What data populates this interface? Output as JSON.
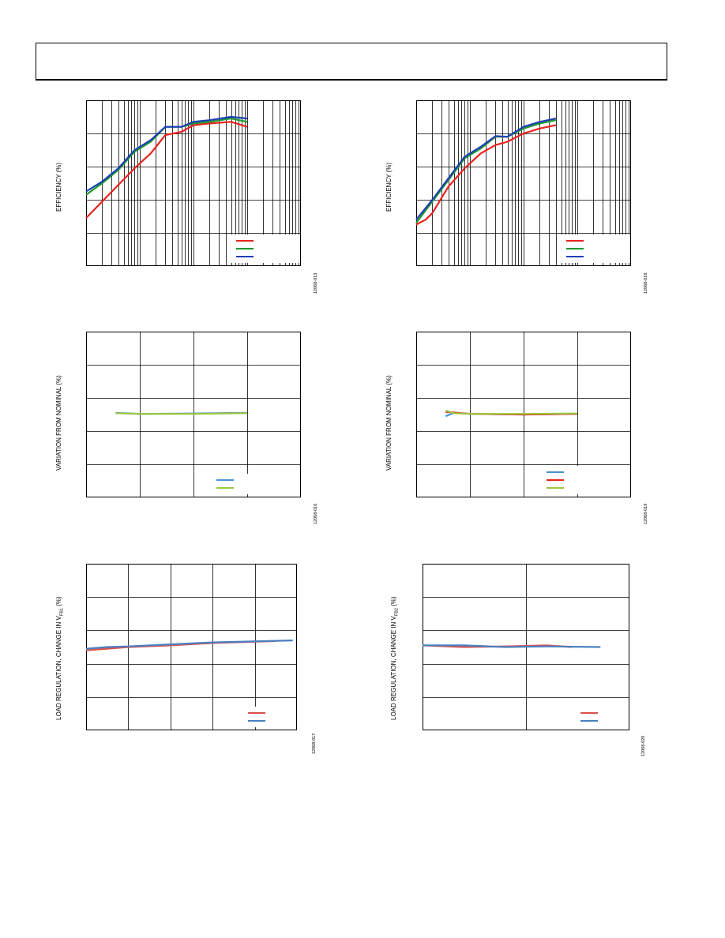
{
  "header": {
    "title": ""
  },
  "charts": [
    {
      "id": "p1",
      "ylabel": "EFFICIENCY (%)",
      "fignum": "12068-013",
      "chart_data": {
        "type": "line",
        "x_scale": "log",
        "xlim": [
          0.001,
          10
        ],
        "ylim": [
          0,
          5
        ],
        "grid": true,
        "legend": "bottom-right",
        "series": [
          {
            "color": "#e8231f",
            "points": [
              [
                0.001,
                1.45
              ],
              [
                0.002,
                1.95
              ],
              [
                0.004,
                2.45
              ],
              [
                0.008,
                2.95
              ],
              [
                0.016,
                3.4
              ],
              [
                0.03,
                3.95
              ],
              [
                0.06,
                4.05
              ],
              [
                0.1,
                4.25
              ],
              [
                0.2,
                4.3
              ],
              [
                0.5,
                4.35
              ],
              [
                1,
                4.2
              ]
            ]
          },
          {
            "color": "#1f9a2e",
            "points": [
              [
                0.001,
                2.15
              ],
              [
                0.002,
                2.5
              ],
              [
                0.004,
                2.9
              ],
              [
                0.008,
                3.45
              ],
              [
                0.016,
                3.75
              ],
              [
                0.03,
                4.2
              ],
              [
                0.06,
                4.2
              ],
              [
                0.1,
                4.3
              ],
              [
                0.2,
                4.35
              ],
              [
                0.5,
                4.45
              ],
              [
                1,
                4.35
              ]
            ]
          },
          {
            "color": "#1d3fb5",
            "points": [
              [
                0.001,
                2.25
              ],
              [
                0.002,
                2.55
              ],
              [
                0.004,
                2.95
              ],
              [
                0.008,
                3.5
              ],
              [
                0.016,
                3.8
              ],
              [
                0.03,
                4.2
              ],
              [
                0.06,
                4.2
              ],
              [
                0.1,
                4.35
              ],
              [
                0.2,
                4.4
              ],
              [
                0.5,
                4.5
              ],
              [
                1,
                4.45
              ]
            ]
          }
        ]
      }
    },
    {
      "id": "p2",
      "ylabel": "EFFICIENCY (%)",
      "fignum": "12068-018",
      "chart_data": {
        "type": "line",
        "x_scale": "log",
        "xlim": [
          0.001,
          10
        ],
        "ylim": [
          0,
          5
        ],
        "grid": true,
        "legend": "bottom-right",
        "series": [
          {
            "color": "#e8231f",
            "points": [
              [
                0.001,
                1.25
              ],
              [
                0.0015,
                1.4
              ],
              [
                0.002,
                1.6
              ],
              [
                0.004,
                2.4
              ],
              [
                0.008,
                2.95
              ],
              [
                0.016,
                3.4
              ],
              [
                0.03,
                3.65
              ],
              [
                0.05,
                3.75
              ],
              [
                0.1,
                4.0
              ],
              [
                0.2,
                4.15
              ],
              [
                0.4,
                4.25
              ]
            ]
          },
          {
            "color": "#1f9a2e",
            "points": [
              [
                0.001,
                1.3
              ],
              [
                0.002,
                1.95
              ],
              [
                0.004,
                2.6
              ],
              [
                0.008,
                3.25
              ],
              [
                0.016,
                3.55
              ],
              [
                0.03,
                3.9
              ],
              [
                0.05,
                3.9
              ],
              [
                0.1,
                4.15
              ],
              [
                0.2,
                4.3
              ],
              [
                0.4,
                4.4
              ]
            ]
          },
          {
            "color": "#1d3fb5",
            "points": [
              [
                0.001,
                1.4
              ],
              [
                0.002,
                2.0
              ],
              [
                0.004,
                2.65
              ],
              [
                0.008,
                3.3
              ],
              [
                0.016,
                3.6
              ],
              [
                0.03,
                3.92
              ],
              [
                0.05,
                3.9
              ],
              [
                0.1,
                4.2
              ],
              [
                0.2,
                4.35
              ],
              [
                0.4,
                4.45
              ]
            ]
          }
        ]
      }
    },
    {
      "id": "p3",
      "ylabel": "VARIATION FROM NOMINAL (%)",
      "fignum": "12068-016",
      "chart_data": {
        "type": "line",
        "xlim": [
          0,
          4
        ],
        "ylim": [
          -2.5,
          2.5
        ],
        "grid": true,
        "legend": "bottom-right",
        "series": [
          {
            "color": "#4a90d0",
            "points": [
              [
                0.55,
                0.05
              ],
              [
                1,
                0.02
              ],
              [
                2,
                0.03
              ],
              [
                3,
                0.05
              ]
            ]
          },
          {
            "color": "#9cc63c",
            "points": [
              [
                0.55,
                0.04
              ],
              [
                1,
                0.02
              ],
              [
                2,
                0.02
              ],
              [
                3,
                0.04
              ]
            ]
          }
        ]
      }
    },
    {
      "id": "p4",
      "ylabel": "VARIATION FROM NOMINAL (%)",
      "fignum": "12068-019",
      "chart_data": {
        "type": "line",
        "xlim": [
          0,
          4
        ],
        "ylim": [
          -2.5,
          2.5
        ],
        "grid": true,
        "legend": "bottom-right",
        "series": [
          {
            "color": "#4a90d0",
            "points": [
              [
                0.55,
                -0.05
              ],
              [
                0.7,
                0.05
              ],
              [
                1,
                0.02
              ],
              [
                2,
                0.0
              ],
              [
                3,
                0.02
              ]
            ]
          },
          {
            "color": "#e8231f",
            "points": [
              [
                0.55,
                0.08
              ],
              [
                0.7,
                0.06
              ],
              [
                1,
                0.02
              ],
              [
                2,
                0.0
              ],
              [
                3,
                0.02
              ]
            ]
          },
          {
            "color": "#9cc63c",
            "points": [
              [
                0.55,
                0.12
              ],
              [
                0.7,
                0.04
              ],
              [
                1,
                0.02
              ],
              [
                2,
                0.02
              ],
              [
                3,
                0.03
              ]
            ]
          }
        ]
      }
    },
    {
      "id": "p5",
      "ylabel": "LOAD REGULATION, CHANGE IN V",
      "ylabel_sub": "FB1",
      "ylabel_tail": " (%)",
      "fignum": "12068-017",
      "chart_data": {
        "type": "line",
        "xlim": [
          0,
          5
        ],
        "ylim": [
          -2.5,
          2.5
        ],
        "grid": true,
        "legend": "bottom-right",
        "series": [
          {
            "color": "#d9534f",
            "points": [
              [
                0,
                -0.1
              ],
              [
                0.5,
                -0.05
              ],
              [
                1,
                0.0
              ],
              [
                2,
                0.05
              ],
              [
                3,
                0.12
              ],
              [
                4.5,
                0.18
              ]
            ]
          },
          {
            "color": "#4a80c0",
            "points": [
              [
                0,
                -0.05
              ],
              [
                0.5,
                0.0
              ],
              [
                1,
                0.02
              ],
              [
                2,
                0.08
              ],
              [
                3,
                0.14
              ],
              [
                4.9,
                0.2
              ]
            ]
          }
        ]
      }
    },
    {
      "id": "p6",
      "ylabel": "LOAD REGULATION, CHANGE IN V",
      "ylabel_sub": "FB2",
      "ylabel_tail": " (%)",
      "fignum": "12068-020",
      "chart_data": {
        "type": "line",
        "xlim": [
          0,
          2.5
        ],
        "ylim": [
          -2.5,
          2.5
        ],
        "grid": true,
        "legend": "bottom-right",
        "series": [
          {
            "color": "#d9534f",
            "points": [
              [
                0,
                0.05
              ],
              [
                0.5,
                0.0
              ],
              [
                1,
                0.02
              ],
              [
                1.5,
                0.05
              ],
              [
                1.8,
                0.0
              ]
            ]
          },
          {
            "color": "#4a80c0",
            "points": [
              [
                0,
                0.05
              ],
              [
                0.5,
                0.05
              ],
              [
                1,
                0.0
              ],
              [
                1.5,
                0.02
              ],
              [
                2.15,
                0.0
              ]
            ]
          }
        ]
      }
    }
  ]
}
